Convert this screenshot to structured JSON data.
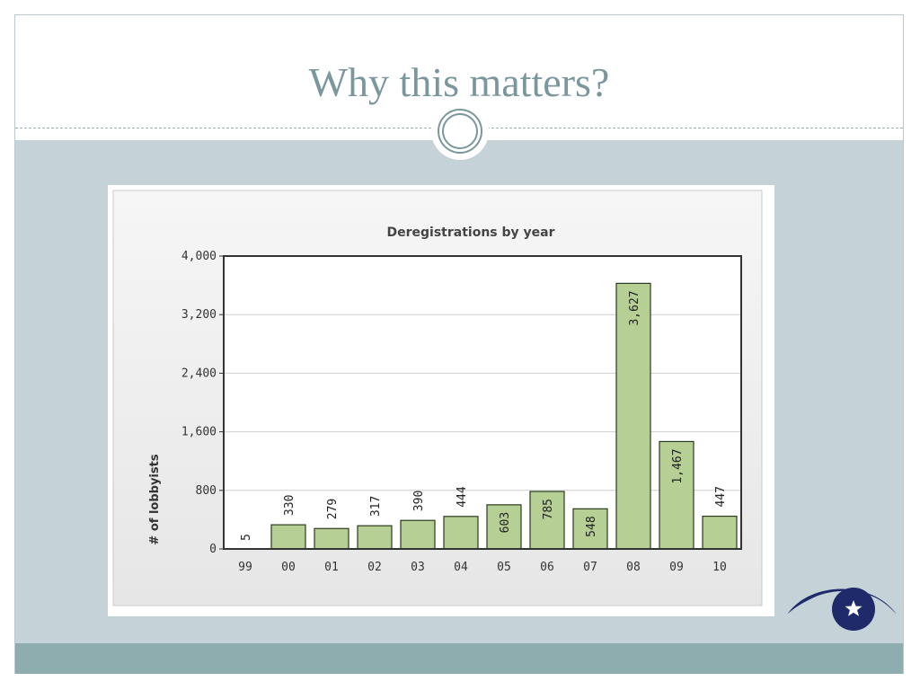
{
  "slide": {
    "title": "Why this matters?"
  },
  "colors": {
    "bar_fill": "#b5cf94",
    "bar_stroke": "#2b3a1e",
    "title_color": "#7a979d",
    "content_bg": "#c5d2d8",
    "band": "#8eadae",
    "logo": "#1f2a6b"
  },
  "logo": {
    "icon": "eye-star-logo-icon"
  },
  "chart_data": {
    "type": "bar",
    "title": "Deregistrations by year",
    "xlabel": "",
    "ylabel": "# of lobbyists",
    "ylim": [
      0,
      4000
    ],
    "yticks": [
      "0",
      "800",
      "1,600",
      "2,400",
      "3,200",
      "4,000"
    ],
    "ytick_values": [
      0,
      800,
      1600,
      2400,
      3200,
      4000
    ],
    "grid": true,
    "categories": [
      "99",
      "00",
      "01",
      "02",
      "03",
      "04",
      "05",
      "06",
      "07",
      "08",
      "09",
      "10"
    ],
    "values": [
      5,
      330,
      279,
      317,
      390,
      444,
      603,
      785,
      548,
      3627,
      1467,
      447
    ],
    "value_labels": [
      "5",
      "330",
      "279",
      "317",
      "390",
      "444",
      "603",
      "785",
      "548",
      "3,627",
      "1,467",
      "447"
    ]
  }
}
